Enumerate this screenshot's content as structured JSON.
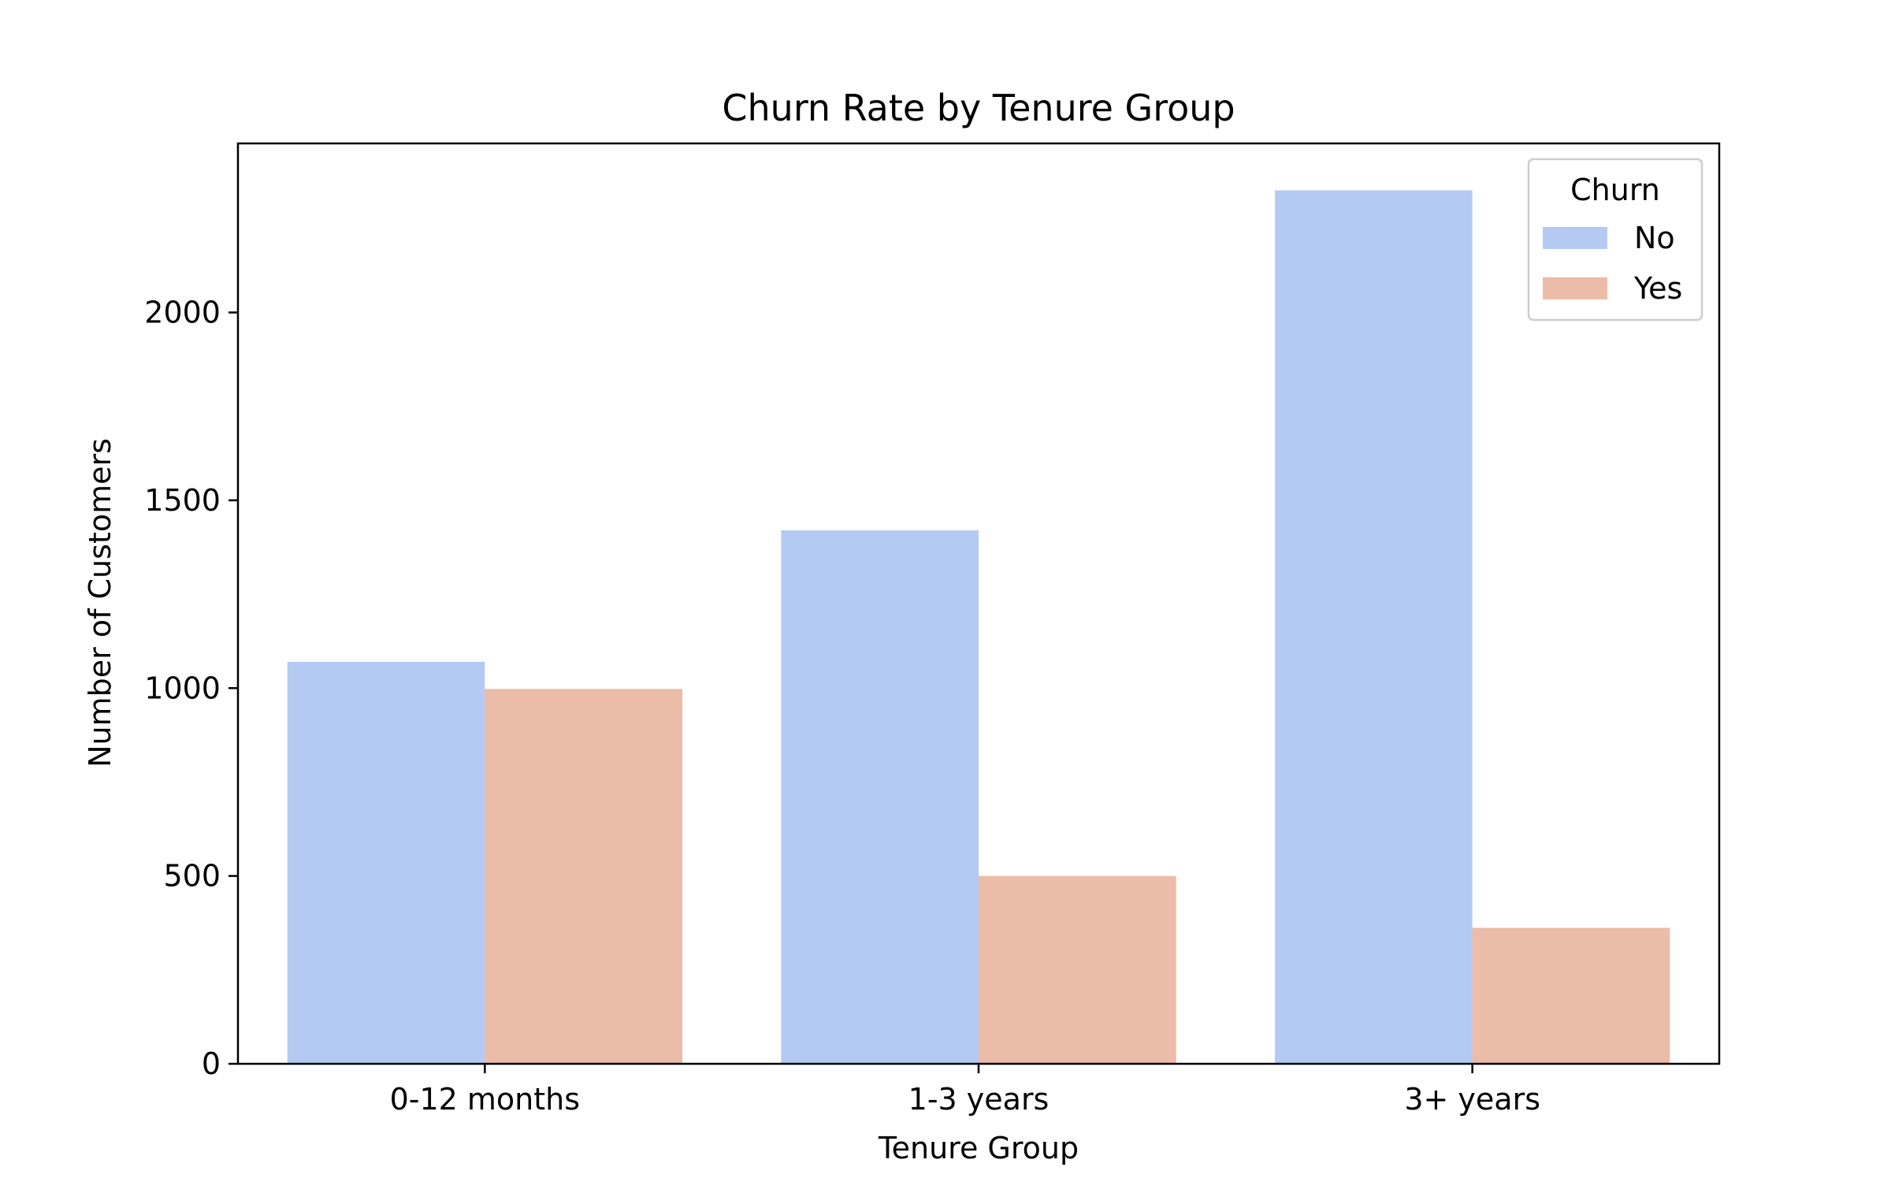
{
  "chart_data": {
    "type": "bar",
    "title": "Churn Rate by Tenure Group",
    "xlabel": "Tenure Group",
    "ylabel": "Number of Customers",
    "categories": [
      "0-12 months",
      "1-3 years",
      "3+ years"
    ],
    "series": [
      {
        "name": "No",
        "values": [
          1070,
          1420,
          2325
        ],
        "color": "#b5caf3"
      },
      {
        "name": "Yes",
        "values": [
          998,
          500,
          362
        ],
        "color": "#ebbca7"
      }
    ],
    "ylim": [
      0,
      2450
    ],
    "yticks": [
      0,
      500,
      1000,
      1500,
      2000
    ],
    "grid": false,
    "legend": {
      "title": "Churn",
      "placement": "top-right"
    }
  }
}
